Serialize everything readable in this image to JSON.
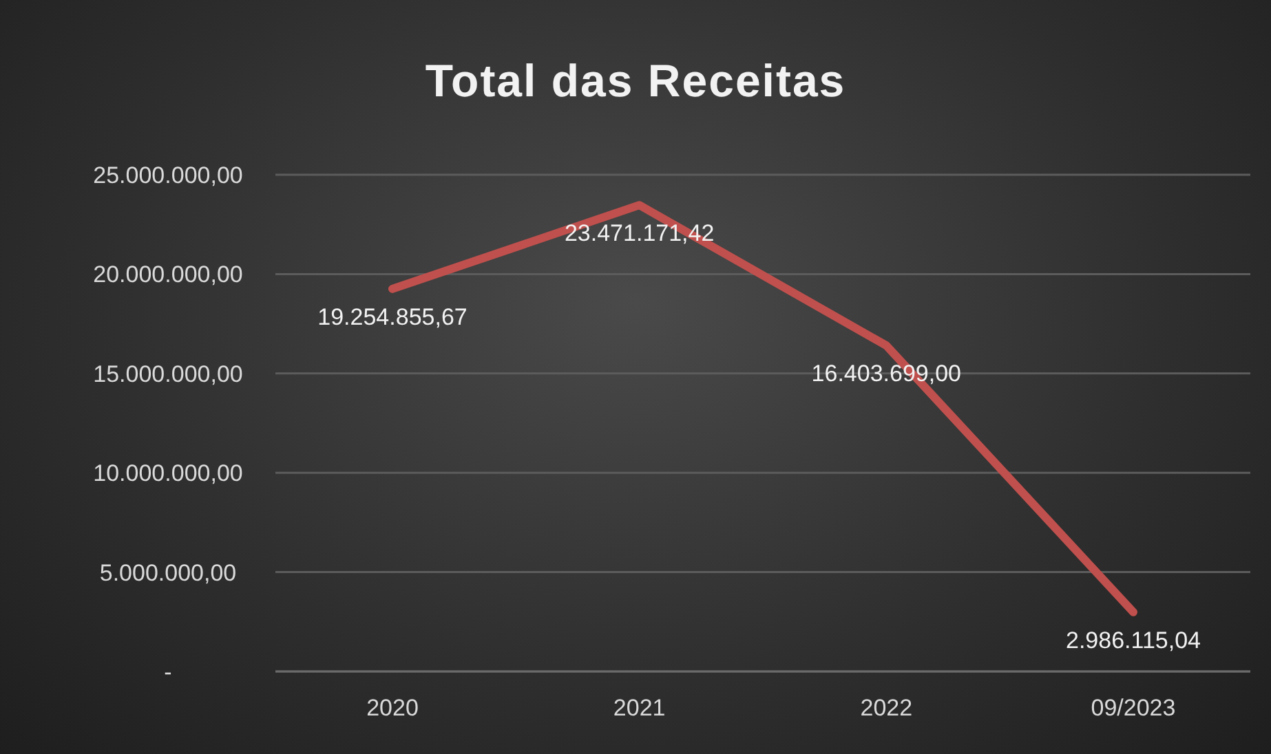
{
  "chart_data": {
    "type": "line",
    "title": "Total das Receitas",
    "categories": [
      "2020",
      "2021",
      "2022",
      "09/2023"
    ],
    "series": [
      {
        "color": "#c0504d",
        "values": [
          19254855.67,
          23471171.42,
          16403699.0,
          2986115.04
        ],
        "value_labels": [
          "19.254.855,67",
          "23.471.171,42",
          "16.403.699,00",
          "2.986.115,04"
        ]
      }
    ],
    "ylim": [
      0,
      25000000
    ],
    "yticks": [
      {
        "value": 0,
        "label": "-"
      },
      {
        "value": 5000000,
        "label": "5.000.000,00"
      },
      {
        "value": 10000000,
        "label": "10.000.000,00"
      },
      {
        "value": 15000000,
        "label": "15.000.000,00"
      },
      {
        "value": 20000000,
        "label": "20.000.000,00"
      },
      {
        "value": 25000000,
        "label": "25.000.000,00"
      }
    ],
    "grid": "y",
    "marker": "none",
    "line_style": "solid"
  }
}
